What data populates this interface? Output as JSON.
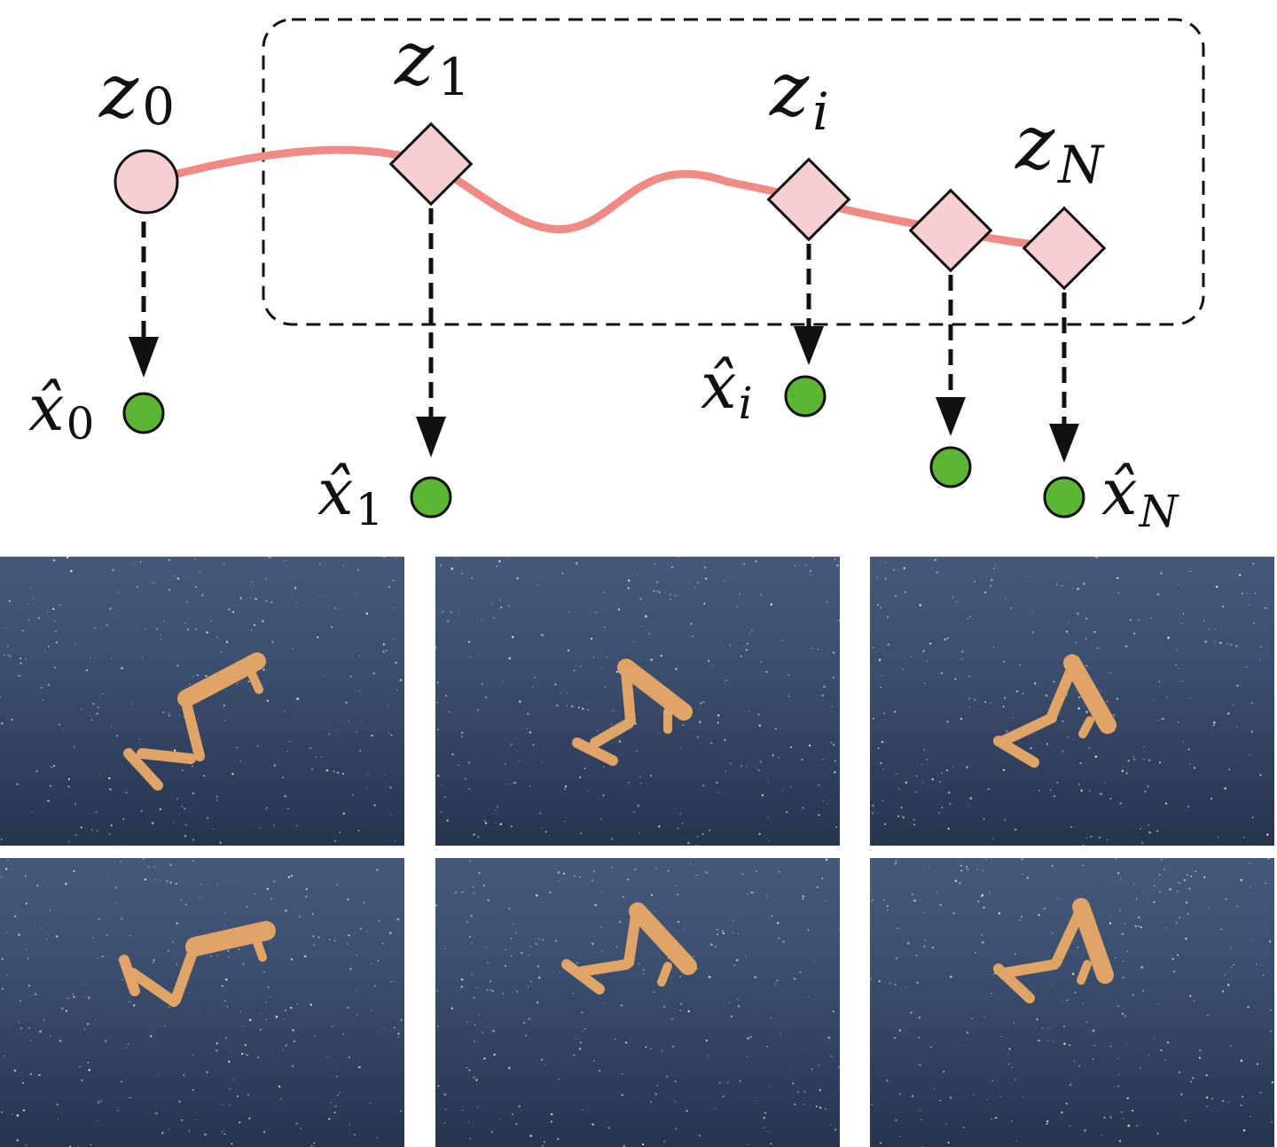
{
  "diagram": {
    "latent_labels": [
      {
        "base": "z",
        "sub": "0"
      },
      {
        "base": "z",
        "sub": "1"
      },
      {
        "base": "z",
        "sub": "i"
      },
      {
        "base": "z",
        "sub": "N"
      }
    ],
    "decoded_labels": [
      {
        "base": "x̂",
        "sub": "0"
      },
      {
        "base": "x̂",
        "sub": "1"
      },
      {
        "base": "x̂",
        "sub": "i"
      },
      {
        "base": "x̂",
        "sub": "N"
      }
    ],
    "colors": {
      "trajectory": "#f08a84",
      "latent_fill": "#f7cfd0",
      "decoded_fill": "#5db534",
      "outline": "#111111",
      "frame_top": "#46597a",
      "frame_bottom": "#26344f",
      "walker": "#e0a467"
    }
  },
  "frames": {
    "rows": 2,
    "cols": 3,
    "subject": "cheetah-walker-pose"
  }
}
